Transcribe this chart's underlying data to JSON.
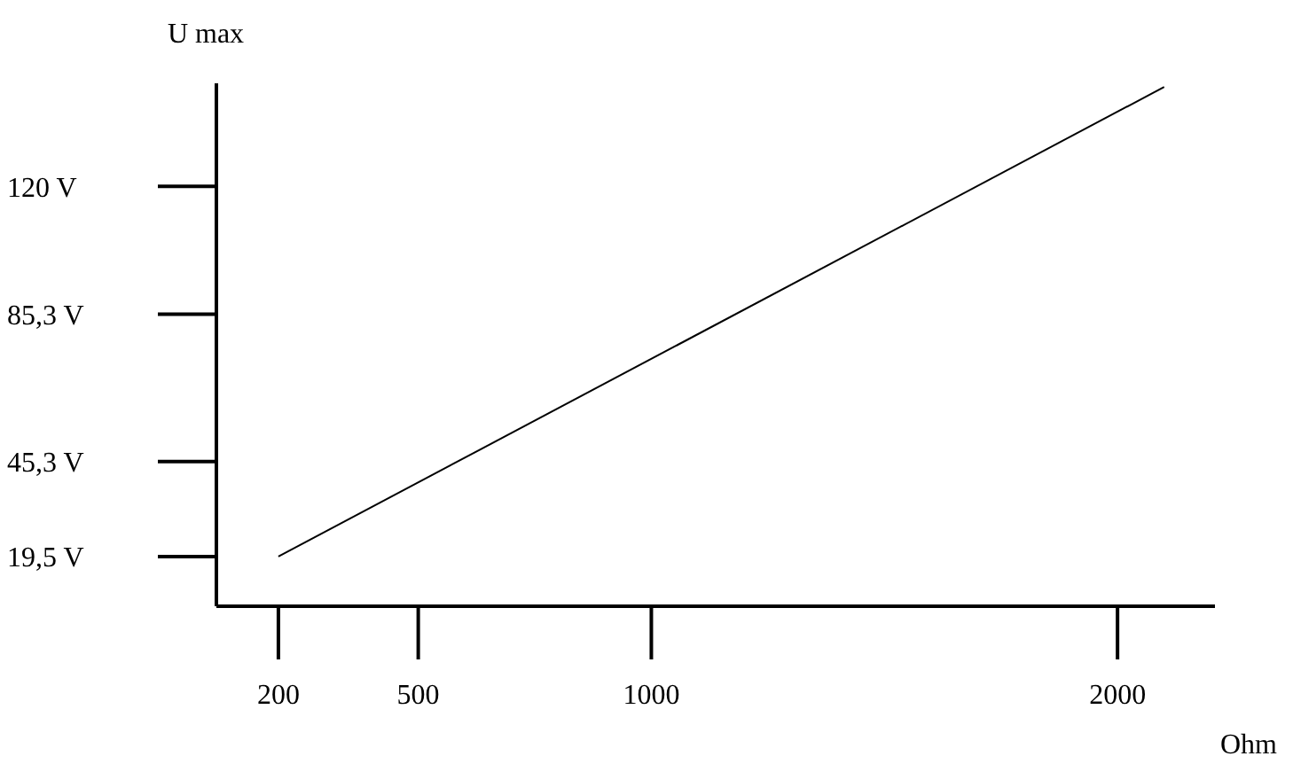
{
  "chart_data": {
    "type": "line",
    "xlabel": "Ohm",
    "ylabel": "U max",
    "x": [
      200,
      2100
    ],
    "series": [
      {
        "color": "#000000",
        "values": [
          19.5,
          147
        ]
      }
    ],
    "xlim": [
      67,
      2209
    ],
    "ylim": [
      6,
      148
    ],
    "xticks": [
      200,
      500,
      1000,
      2000
    ],
    "yticks": [
      {
        "value": 19.5,
        "label": "19,5 V"
      },
      {
        "value": 45.3,
        "label": "45,3 V"
      },
      {
        "value": 85.3,
        "label": "85,3 V"
      },
      {
        "value": 120,
        "label": "120 V"
      }
    ],
    "grid": false,
    "marker": "none",
    "line_style": "solid"
  }
}
